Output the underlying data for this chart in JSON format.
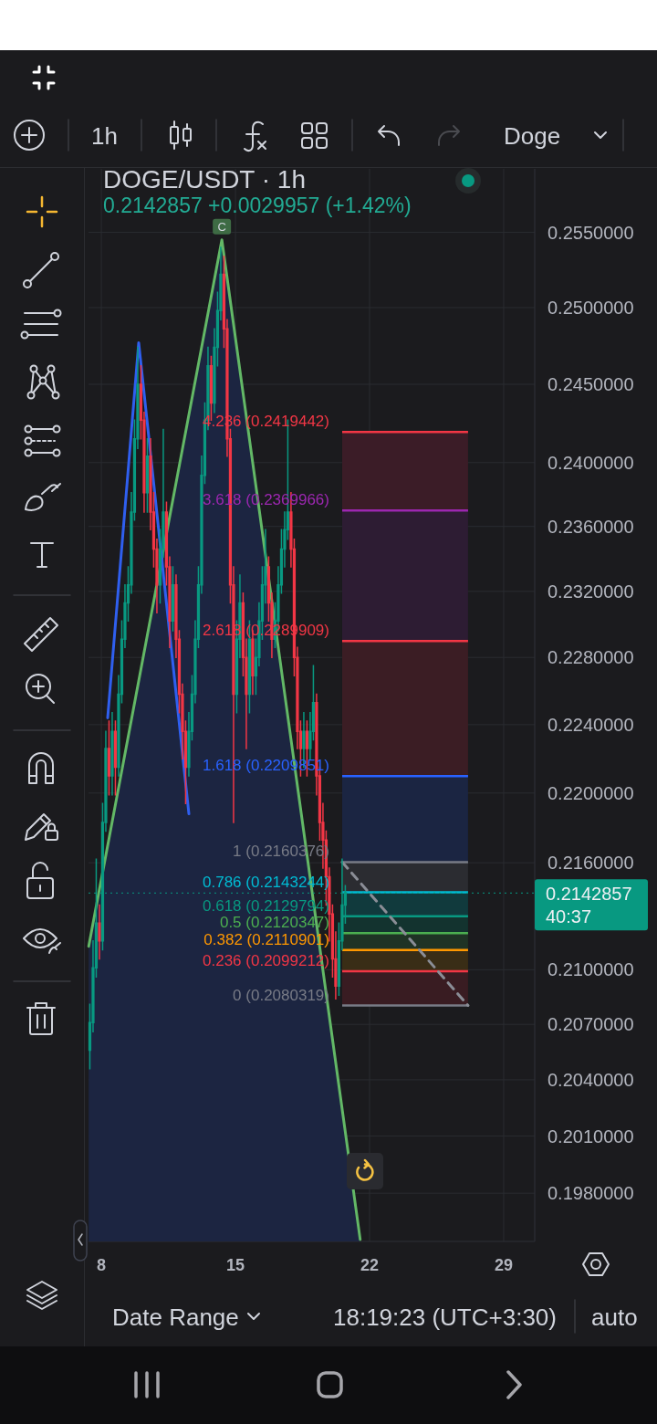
{
  "chart_data": {
    "type": "candlestick",
    "title": "DOGE/USDT · 1h",
    "subtitle": "0.2142857 +0.0029957 (+1.42%)",
    "xlim": [
      7.33,
      30.62
    ],
    "xticks": [
      8,
      15,
      22,
      29
    ],
    "ylim": [
      0.1955,
      0.2593
    ],
    "log": true,
    "yticks": [
      {
        "value": 0.255,
        "label": "0.2550000"
      },
      {
        "value": 0.25,
        "label": "0.2500000"
      },
      {
        "value": 0.245,
        "label": "0.2450000"
      },
      {
        "value": 0.24,
        "label": "0.2400000"
      },
      {
        "value": 0.236,
        "label": "0.2360000"
      },
      {
        "value": 0.232,
        "label": "0.2320000"
      },
      {
        "value": 0.228,
        "label": "0.2280000"
      },
      {
        "value": 0.224,
        "label": "0.2240000"
      },
      {
        "value": 0.22,
        "label": "0.2200000"
      },
      {
        "value": 0.216,
        "label": "0.2160000"
      },
      {
        "value": 0.21,
        "label": "0.2100000"
      },
      {
        "value": 0.207,
        "label": "0.2070000"
      },
      {
        "value": 0.204,
        "label": "0.2040000"
      },
      {
        "value": 0.201,
        "label": "0.2010000"
      },
      {
        "value": 0.198,
        "label": "0.1980000"
      }
    ],
    "grid": true,
    "series": [
      {
        "type": "area",
        "color": "#63b866",
        "colors": [
          "#1c2541",
          "#1c2541",
          "#1c2541"
        ],
        "x": [
          7.34,
          14.29,
          21.51
        ],
        "values": [
          0.2113,
          0.2545,
          0.1956
        ]
      },
      {
        "type": "line",
        "color": "#2f5fef",
        "x": [
          8.33,
          9.95,
          12.57
        ],
        "values": [
          0.2244,
          0.2477,
          0.2188
        ]
      },
      {
        "type": "line",
        "color": "#8a8d96",
        "line_style": "dashed",
        "x": [
          20.57,
          27.14
        ],
        "values": [
          0.2160376,
          0.2080319
        ]
      },
      {
        "x": [
          7.4,
          7.567,
          7.733,
          7.9,
          8.067,
          8.233,
          8.4,
          8.567,
          8.733,
          8.9,
          9.067,
          9.233,
          9.4,
          9.567,
          9.733,
          9.9,
          10.067,
          10.233,
          10.4,
          10.567,
          10.733,
          10.9,
          11.067,
          11.233,
          11.4,
          11.567,
          11.733,
          11.9,
          12.067,
          12.233,
          12.4,
          12.567,
          12.733,
          12.9,
          13.067,
          13.233,
          13.4,
          13.567,
          13.733,
          13.9,
          14.067,
          14.233,
          14.4,
          14.567,
          14.733,
          14.9,
          15.067,
          15.233,
          15.4,
          15.567,
          15.733,
          15.9,
          16.067,
          16.233,
          16.4,
          16.567,
          16.733,
          16.9,
          17.067,
          17.233,
          17.4,
          17.567,
          17.733,
          17.9,
          18.067,
          18.233,
          18.4,
          18.567,
          18.733,
          18.9,
          19.067,
          19.233,
          19.4,
          19.567,
          19.733,
          19.9,
          20.067,
          20.233,
          20.4,
          20.567,
          20.733
        ],
        "ohlc": [
          [
            0.2056,
            0.2081,
            0.2046,
            0.2071
          ],
          [
            0.2071,
            0.2116,
            0.2066,
            0.2101
          ],
          [
            0.2101,
            0.2162,
            0.2096,
            0.2126
          ],
          [
            0.2126,
            0.2136,
            0.2106,
            0.2116
          ],
          [
            0.2116,
            0.2194,
            0.2111,
            0.2183
          ],
          [
            0.2183,
            0.2236,
            0.2178,
            0.2226
          ],
          [
            0.2226,
            0.2242,
            0.2199,
            0.221
          ],
          [
            0.221,
            0.2247,
            0.2199,
            0.2236
          ],
          [
            0.2236,
            0.2242,
            0.2199,
            0.2215
          ],
          [
            0.2215,
            0.2269,
            0.221,
            0.2258
          ],
          [
            0.2258,
            0.2302,
            0.2253,
            0.2291
          ],
          [
            0.2291,
            0.2324,
            0.2286,
            0.2313
          ],
          [
            0.2313,
            0.2335,
            0.2302,
            0.2324
          ],
          [
            0.2324,
            0.2381,
            0.2319,
            0.2369
          ],
          [
            0.2369,
            0.2427,
            0.2364,
            0.2415
          ],
          [
            0.2415,
            0.2474,
            0.2409,
            0.245
          ],
          [
            0.245,
            0.2462,
            0.2415,
            0.2427
          ],
          [
            0.2427,
            0.2432,
            0.2369,
            0.2381
          ],
          [
            0.2381,
            0.2415,
            0.2369,
            0.2404
          ],
          [
            0.2404,
            0.2415,
            0.2358,
            0.2369
          ],
          [
            0.2369,
            0.2381,
            0.2335,
            0.2346
          ],
          [
            0.2346,
            0.2352,
            0.2307,
            0.2324
          ],
          [
            0.2324,
            0.2358,
            0.2313,
            0.2346
          ],
          [
            0.2346,
            0.2421,
            0.2341,
            0.2369
          ],
          [
            0.2369,
            0.2375,
            0.2324,
            0.2335
          ],
          [
            0.2335,
            0.2341,
            0.2286,
            0.2302
          ],
          [
            0.2302,
            0.2335,
            0.2296,
            0.2324
          ],
          [
            0.2324,
            0.233,
            0.228,
            0.2291
          ],
          [
            0.2291,
            0.2296,
            0.2247,
            0.2258
          ],
          [
            0.2258,
            0.2264,
            0.222,
            0.2236
          ],
          [
            0.2236,
            0.2242,
            0.2194,
            0.2215
          ],
          [
            0.2215,
            0.2247,
            0.221,
            0.2236
          ],
          [
            0.2236,
            0.2269,
            0.2231,
            0.2258
          ],
          [
            0.2258,
            0.2302,
            0.2253,
            0.2291
          ],
          [
            0.2291,
            0.2335,
            0.2286,
            0.2324
          ],
          [
            0.2324,
            0.2404,
            0.2319,
            0.2392
          ],
          [
            0.2392,
            0.2438,
            0.2387,
            0.2427
          ],
          [
            0.2427,
            0.2474,
            0.2421,
            0.2462
          ],
          [
            0.2462,
            0.2468,
            0.2427,
            0.2438
          ],
          [
            0.2438,
            0.2486,
            0.2432,
            0.2474
          ],
          [
            0.2474,
            0.251,
            0.2462,
            0.2498
          ],
          [
            0.2498,
            0.254,
            0.2492,
            0.2522
          ],
          [
            0.2522,
            0.2534,
            0.2474,
            0.2486
          ],
          [
            0.2486,
            0.2492,
            0.2404,
            0.2415
          ],
          [
            0.2415,
            0.2421,
            0.2313,
            0.2324
          ],
          [
            0.2324,
            0.2335,
            0.2183,
            0.2258
          ],
          [
            0.2258,
            0.2302,
            0.2247,
            0.2291
          ],
          [
            0.2291,
            0.233,
            0.228,
            0.2313
          ],
          [
            0.2313,
            0.2319,
            0.2269,
            0.228
          ],
          [
            0.228,
            0.2291,
            0.2226,
            0.2258
          ],
          [
            0.2258,
            0.2302,
            0.2247,
            0.2291
          ],
          [
            0.2291,
            0.2296,
            0.2258,
            0.2269
          ],
          [
            0.2269,
            0.2291,
            0.2258,
            0.228
          ],
          [
            0.228,
            0.2313,
            0.2275,
            0.2302
          ],
          [
            0.2302,
            0.2335,
            0.2291,
            0.2324
          ],
          [
            0.2324,
            0.2358,
            0.2313,
            0.2335
          ],
          [
            0.2335,
            0.2341,
            0.2302,
            0.2313
          ],
          [
            0.2313,
            0.2319,
            0.228,
            0.2291
          ],
          [
            0.2291,
            0.2313,
            0.2286,
            0.2302
          ],
          [
            0.2302,
            0.2335,
            0.2296,
            0.2324
          ],
          [
            0.2324,
            0.2358,
            0.2319,
            0.2346
          ],
          [
            0.2346,
            0.2369,
            0.2335,
            0.2358
          ],
          [
            0.2358,
            0.2427,
            0.2352,
            0.2369
          ],
          [
            0.2369,
            0.2381,
            0.2335,
            0.2346
          ],
          [
            0.2346,
            0.2352,
            0.2269,
            0.228
          ],
          [
            0.228,
            0.2286,
            0.2226,
            0.2236
          ],
          [
            0.2236,
            0.2242,
            0.221,
            0.2226
          ],
          [
            0.2226,
            0.2247,
            0.2215,
            0.2236
          ],
          [
            0.2236,
            0.2242,
            0.221,
            0.2226
          ],
          [
            0.2226,
            0.2247,
            0.222,
            0.2236
          ],
          [
            0.2236,
            0.2275,
            0.2231,
            0.2253
          ],
          [
            0.2253,
            0.2258,
            0.2199,
            0.221
          ],
          [
            0.221,
            0.2215,
            0.2173,
            0.2183
          ],
          [
            0.2183,
            0.2194,
            0.2157,
            0.2173
          ],
          [
            0.2173,
            0.2178,
            0.2136,
            0.2152
          ],
          [
            0.2152,
            0.2157,
            0.2116,
            0.2131
          ],
          [
            0.2131,
            0.2136,
            0.2096,
            0.2106
          ],
          [
            0.2106,
            0.2121,
            0.2084,
            0.2091
          ],
          [
            0.2091,
            0.2126,
            0.2086,
            0.2116
          ],
          [
            0.2116,
            0.2162,
            0.2111,
            0.2136
          ],
          [
            0.2136,
            0.2147,
            0.2126,
            0.2143
          ]
        ],
        "colors": [
          "#089981",
          "#089981",
          "#089981",
          "#f23645",
          "#089981",
          "#089981",
          "#f23645",
          "#089981",
          "#f23645",
          "#089981",
          "#089981",
          "#089981",
          "#089981",
          "#089981",
          "#089981",
          "#089981",
          "#f23645",
          "#f23645",
          "#089981",
          "#f23645",
          "#f23645",
          "#f23645",
          "#089981",
          "#089981",
          "#f23645",
          "#f23645",
          "#089981",
          "#f23645",
          "#f23645",
          "#f23645",
          "#f23645",
          "#089981",
          "#089981",
          "#089981",
          "#089981",
          "#089981",
          "#089981",
          "#089981",
          "#f23645",
          "#089981",
          "#089981",
          "#089981",
          "#f23645",
          "#f23645",
          "#f23645",
          "#f23645",
          "#089981",
          "#089981",
          "#f23645",
          "#f23645",
          "#089981",
          "#f23645",
          "#089981",
          "#089981",
          "#089981",
          "#089981",
          "#f23645",
          "#f23645",
          "#089981",
          "#089981",
          "#089981",
          "#089981",
          "#089981",
          "#f23645",
          "#f23645",
          "#f23645",
          "#f23645",
          "#089981",
          "#f23645",
          "#089981",
          "#089981",
          "#f23645",
          "#f23645",
          "#f23645",
          "#f23645",
          "#f23645",
          "#f23645",
          "#f23645",
          "#089981",
          "#089981",
          "#089981"
        ]
      }
    ],
    "bands": [
      {
        "axis": "y",
        "from": 0.2369966,
        "to": 0.2419442,
        "color": "#3b1c27"
      },
      {
        "axis": "y",
        "from": 0.2289909,
        "to": 0.2369966,
        "color": "#2d1c33"
      },
      {
        "axis": "y",
        "from": 0.2209851,
        "to": 0.2289909,
        "color": "#3b1d24"
      },
      {
        "axis": "y",
        "from": 0.2160376,
        "to": 0.2209851,
        "color": "#1b2542"
      },
      {
        "axis": "y",
        "from": 0.2143244,
        "to": 0.2160376,
        "color": "#2b2c31"
      },
      {
        "axis": "y",
        "from": 0.2129794,
        "to": 0.2143244,
        "color": "#113a3d"
      },
      {
        "axis": "y",
        "from": 0.2120347,
        "to": 0.2129794,
        "color": "#13332f"
      },
      {
        "axis": "y",
        "from": 0.2110901,
        "to": 0.2120347,
        "color": "#1f3325"
      },
      {
        "axis": "y",
        "from": 0.2099212,
        "to": 0.2110901,
        "color": "#392d16"
      },
      {
        "axis": "y",
        "from": 0.2080319,
        "to": 0.2099212,
        "color": "#391c22"
      }
    ],
    "ref_lines": [
      {
        "axis": "y",
        "value": 0.2419442,
        "label": "4.236 (0.2419442)",
        "color": "#f23645"
      },
      {
        "axis": "y",
        "value": 0.2369966,
        "label": "3.618 (0.2369966)",
        "color": "#9c27b0"
      },
      {
        "axis": "y",
        "value": 0.2289909,
        "label": "2.618 (0.2289909)",
        "color": "#f23645"
      },
      {
        "axis": "y",
        "value": 0.2209851,
        "label": "1.618 (0.2209851)",
        "color": "#2962ff"
      },
      {
        "axis": "y",
        "value": 0.2160376,
        "label": "1 (0.2160376)",
        "color": "#787b86"
      },
      {
        "axis": "y",
        "value": 0.2143244,
        "label": "0.786 (0.2143244)",
        "color": "#00bcd4"
      },
      {
        "axis": "y",
        "value": 0.2129794,
        "label": "0.618 (0.2129794)",
        "color": "#089981"
      },
      {
        "axis": "y",
        "value": 0.2120347,
        "label": "0.5 (0.2120347)",
        "color": "#4caf50"
      },
      {
        "axis": "y",
        "value": 0.2110901,
        "label": "0.382 (0.2110901)",
        "color": "#ff9800"
      },
      {
        "axis": "y",
        "value": 0.2099212,
        "label": "0.236 (0.2099212)",
        "color": "#f23645"
      },
      {
        "axis": "y",
        "value": 0.2080319,
        "label": "0 (0.2080319)",
        "color": "#787b86"
      },
      {
        "axis": "y",
        "value": 0.2142857,
        "label": "0.2142857",
        "color": "#089981",
        "line_style": "dotted"
      }
    ],
    "annotations": [
      "1h",
      "Doge",
      "40:37",
      {
        "text": "C",
        "x": 14.29,
        "y": 0.2545
      },
      "Date Range",
      "18:19:23 (UTC+3:30)",
      "auto"
    ]
  }
}
